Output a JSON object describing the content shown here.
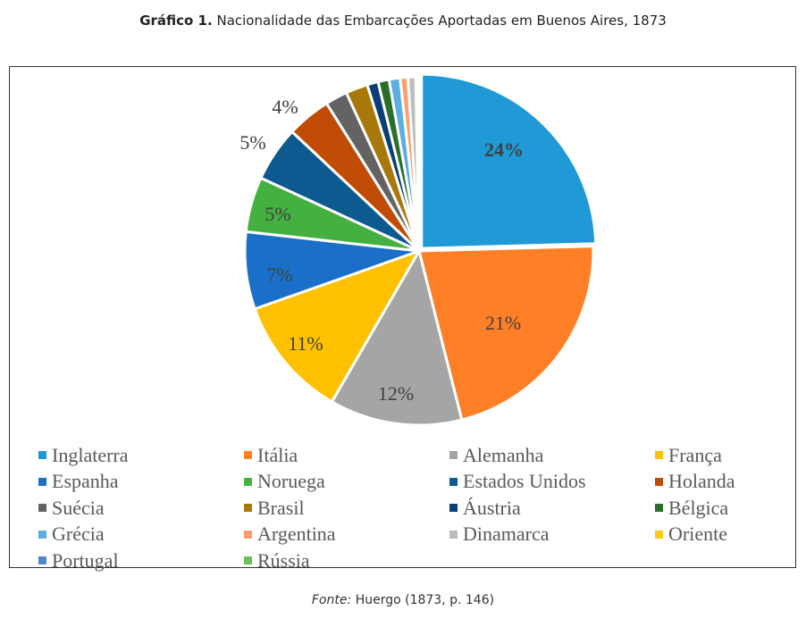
{
  "title": {
    "prefix": "Gráfico 1.",
    "text": "Nacionalidade das Embarcações Aportadas em Buenos Aires, 1873"
  },
  "source": {
    "prefix": "Fonte:",
    "text": "Huergo (1873, p. 146)"
  },
  "chart_data": {
    "type": "pie",
    "title": "Gráfico 1. Nacionalidade das Embarcações Aportadas em Buenos Aires, 1873",
    "legend_position": "bottom",
    "start_angle_deg": 0,
    "direction": "clockwise",
    "categories": [
      "Inglaterra",
      "Itália",
      "Alemanha",
      "França",
      "Espanha",
      "Noruega",
      "Estados Unidos",
      "Holanda",
      "Suécia",
      "Brasil",
      "Áustria",
      "Bélgica",
      "Grécia",
      "Argentina",
      "Dinamarca",
      "Oriente",
      "Portugal",
      "Rússia"
    ],
    "values": [
      24,
      21,
      12,
      11,
      7,
      5,
      5,
      4,
      2,
      2,
      1,
      1,
      1,
      0.7,
      0.7,
      0.1,
      0.1,
      0.1
    ],
    "labels": [
      "24%",
      "21%",
      "12%",
      "11%",
      "7%",
      "5%",
      "5%",
      "4%",
      "",
      "",
      "",
      "",
      "",
      "",
      "",
      "",
      "",
      ""
    ],
    "colors": [
      "#1F9AD6",
      "#FF7F27",
      "#A5A5A5",
      "#FFC000",
      "#1A70C8",
      "#43B040",
      "#0C5A8F",
      "#C04B05",
      "#636363",
      "#A8780A",
      "#0A3E78",
      "#2A6E2A",
      "#5AAEE0",
      "#FF9E6B",
      "#BDBDBD",
      "#FFC61A",
      "#4F87CC",
      "#6CBF5A"
    ]
  }
}
